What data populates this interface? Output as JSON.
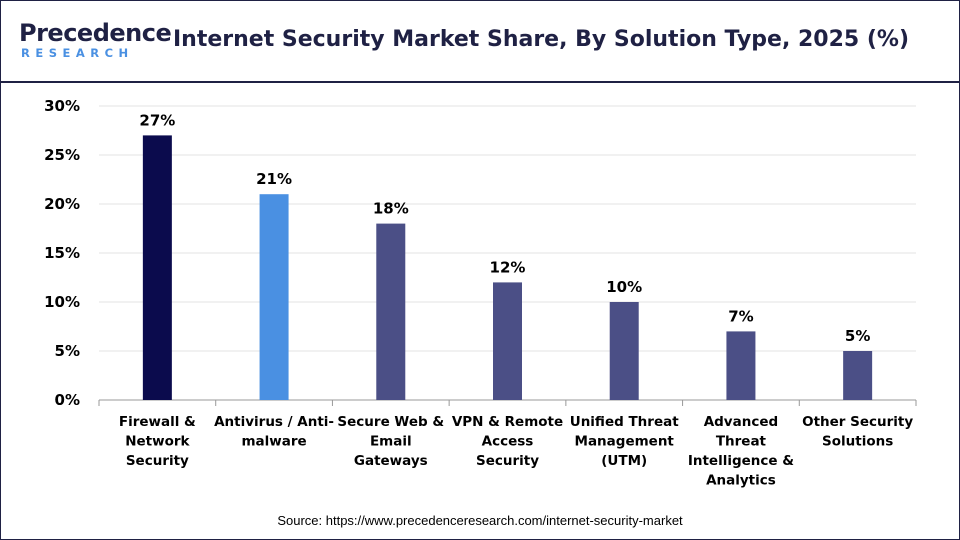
{
  "header": {
    "logo_word": "Precedence",
    "logo_sub": "RESEARCH",
    "title": "Internet Security Market Share, By Solution Type, 2025 (%)"
  },
  "chart_data": {
    "type": "bar",
    "categories": [
      "Firewall & Network Security",
      "Antivirus / Anti-malware",
      "Secure Web & Email Gateways",
      "VPN & Remote Access Security",
      "Unified Threat Management (UTM)",
      "Advanced Threat Intelligence & Analytics",
      "Other Security Solutions"
    ],
    "category_lines": [
      [
        "Firewall &",
        "Network",
        "Security"
      ],
      [
        "Antivirus / Anti-",
        "malware"
      ],
      [
        "Secure Web &",
        "Email",
        "Gateways"
      ],
      [
        "VPN & Remote",
        "Access",
        "Security"
      ],
      [
        "Unified Threat",
        "Management",
        "(UTM)"
      ],
      [
        "Advanced",
        "Threat",
        "Intelligence &",
        "Analytics"
      ],
      [
        "Other Security",
        "Solutions"
      ]
    ],
    "values": [
      27,
      21,
      18,
      12,
      10,
      7,
      5
    ],
    "data_labels": [
      "27%",
      "21%",
      "18%",
      "12%",
      "10%",
      "7%",
      "5%"
    ],
    "bar_colors": [
      "#0b0b4d",
      "#4a90e2",
      "#4b4f86",
      "#4b4f86",
      "#4b4f86",
      "#4b4f86",
      "#4b4f86"
    ],
    "ylim": [
      0,
      30
    ],
    "yticks": [
      0,
      5,
      10,
      15,
      20,
      25,
      30
    ],
    "ytick_labels": [
      "0%",
      "5%",
      "10%",
      "15%",
      "20%",
      "25%",
      "30%"
    ],
    "grid": true,
    "title": "Internet Security Market Share, By Solution Type, 2025 (%)"
  },
  "footer": {
    "source": "Source: https://www.precedenceresearch.com/internet-security-market"
  }
}
